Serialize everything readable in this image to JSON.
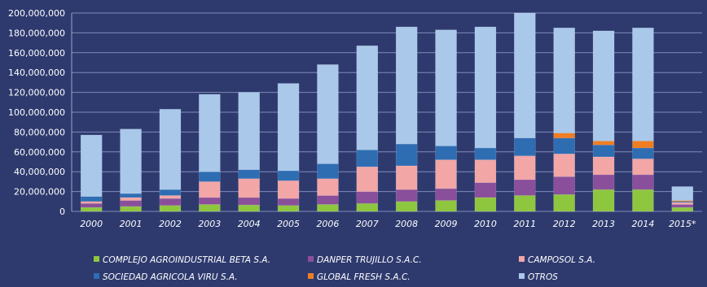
{
  "chart_data": {
    "type": "bar",
    "stacked": true,
    "categories": [
      "2000",
      "2001",
      "2002",
      "2003",
      "2004",
      "2005",
      "2006",
      "2007",
      "2008",
      "2009",
      "2010",
      "2011",
      "2012",
      "2013",
      "2014",
      "2015*"
    ],
    "ylim": [
      0,
      200000000
    ],
    "y_ticks": [
      "0",
      "20,000,000",
      "40,000,000",
      "60,000,000",
      "80,000,000",
      "100,000,000",
      "120,000,000",
      "140,000,000",
      "160,000,000",
      "180,000,000",
      "200,000,000"
    ],
    "grid": true,
    "legend_position": "bottom",
    "series": [
      {
        "name": "COMPLEJO AGROINDUSTRIAL BETA S.A.",
        "color": "#8ec63f",
        "values": [
          4000000,
          5000000,
          6000000,
          7000000,
          6500000,
          6000000,
          7000000,
          8000000,
          10000000,
          11000000,
          14000000,
          16000000,
          17000000,
          22000000,
          22000000,
          4000000
        ]
      },
      {
        "name": "DANPER TRUJILLO S.A.C.",
        "color": "#8a4f9a",
        "values": [
          4000000,
          6000000,
          7000000,
          7000000,
          7500000,
          7000000,
          9000000,
          12000000,
          12000000,
          12000000,
          15000000,
          16000000,
          18000000,
          15000000,
          15000000,
          3000000
        ]
      },
      {
        "name": "CAMPOSOL S.A.",
        "color": "#f2a6a6",
        "values": [
          2000000,
          3000000,
          3000000,
          16000000,
          19000000,
          18000000,
          17000000,
          25000000,
          24000000,
          29000000,
          23000000,
          24000000,
          23000000,
          18000000,
          16000000,
          2000000
        ]
      },
      {
        "name": "SOCIEDAD AGRICOLA VIRU S.A.",
        "color": "#2f6db3",
        "values": [
          5000000,
          4000000,
          6000000,
          10000000,
          9000000,
          10000000,
          15000000,
          17000000,
          22000000,
          14000000,
          12000000,
          18000000,
          16000000,
          12000000,
          11000000,
          1000000
        ]
      },
      {
        "name": "GLOBAL FRESH S.A.C.",
        "color": "#f07d22",
        "values": [
          0,
          0,
          0,
          0,
          0,
          0,
          0,
          0,
          0,
          0,
          0,
          0,
          5000000,
          4000000,
          7000000,
          1000000
        ]
      },
      {
        "name": "OTROS",
        "color": "#a9c8ea",
        "values": [
          62000000,
          65000000,
          81000000,
          78000000,
          78000000,
          88000000,
          100000000,
          105000000,
          118000000,
          117000000,
          122000000,
          126000000,
          106000000,
          111000000,
          114000000,
          14000000
        ]
      }
    ]
  }
}
